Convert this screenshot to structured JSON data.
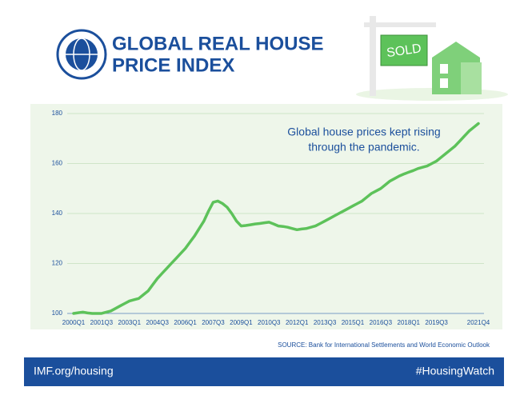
{
  "chart_data": {
    "type": "line",
    "title": [
      "GLOBAL REAL HOUSE",
      "PRICE INDEX"
    ],
    "annotation": [
      "Global house prices kept rising",
      "through the pandemic."
    ],
    "source": "SOURCE: Bank for International Settlements and World Economic Outlook",
    "sign": "SOLD",
    "categories": [
      "2000Q1",
      null,
      null,
      null,
      null,
      null,
      "2001Q3",
      null,
      null,
      null,
      null,
      null,
      "2003Q1",
      null,
      null,
      null,
      null,
      null,
      "2004Q3",
      null,
      null,
      null,
      null,
      null,
      "2006Q1",
      null,
      null,
      null,
      null,
      null,
      "2007Q3",
      null,
      null,
      null,
      null,
      null,
      "2009Q1",
      null,
      null,
      null,
      null,
      null,
      "2010Q3",
      null,
      null,
      null,
      null,
      null,
      "2012Q1",
      null,
      null,
      null,
      null,
      null,
      "2013Q3",
      null,
      null,
      null,
      null,
      null,
      "2015Q1",
      null,
      null,
      null,
      null,
      null,
      "2016Q3",
      null,
      null,
      null,
      null,
      null,
      "2018Q1",
      null,
      null,
      null,
      null,
      null,
      "2019Q3",
      null,
      null,
      null,
      null,
      null,
      null,
      null,
      null,
      "2021Q4"
    ],
    "values": [
      100,
      100.3,
      100.5,
      100.2,
      100,
      100,
      100,
      100.5,
      101,
      102,
      103,
      104,
      105,
      105.5,
      106,
      107.5,
      109,
      111.5,
      114,
      116,
      118,
      120,
      122,
      124,
      126,
      128.5,
      131,
      134,
      137,
      141,
      144.5,
      145,
      144,
      142.5,
      140,
      137,
      135,
      135.2,
      135.5,
      135.8,
      136,
      136.3,
      136.5,
      135.8,
      135,
      134.8,
      134.5,
      134,
      133.5,
      133.8,
      134,
      134.5,
      135,
      136,
      137,
      138,
      139,
      140,
      141,
      142,
      143,
      144,
      145,
      146.5,
      148,
      149,
      150,
      151.5,
      153,
      154,
      155,
      155.8,
      156.5,
      157.2,
      158,
      158.5,
      159,
      160,
      161,
      162.5,
      164,
      165.5,
      167,
      169,
      171,
      173,
      174.5,
      176
    ],
    "color": "#5dc25a",
    "ylim": [
      100,
      180
    ],
    "yticks": [
      100,
      120,
      140,
      160,
      180
    ],
    "grid": true
  },
  "footer": {
    "left": "IMF.org/housing",
    "right": "#HousingWatch"
  }
}
